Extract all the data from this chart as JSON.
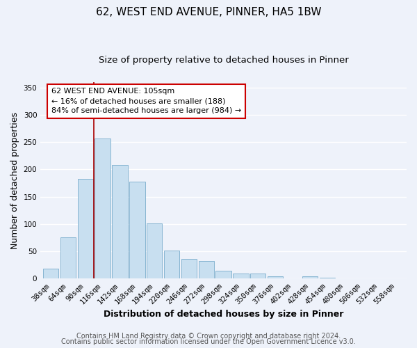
{
  "title": "62, WEST END AVENUE, PINNER, HA5 1BW",
  "subtitle": "Size of property relative to detached houses in Pinner",
  "xlabel": "Distribution of detached houses by size in Pinner",
  "ylabel": "Number of detached properties",
  "bar_labels": [
    "38sqm",
    "64sqm",
    "90sqm",
    "116sqm",
    "142sqm",
    "168sqm",
    "194sqm",
    "220sqm",
    "246sqm",
    "272sqm",
    "298sqm",
    "324sqm",
    "350sqm",
    "376sqm",
    "402sqm",
    "428sqm",
    "454sqm",
    "480sqm",
    "506sqm",
    "532sqm",
    "558sqm"
  ],
  "bar_values": [
    18,
    76,
    183,
    257,
    208,
    178,
    101,
    51,
    36,
    32,
    15,
    10,
    10,
    5,
    1,
    4,
    2,
    1,
    0,
    0,
    1
  ],
  "bar_color": "#c8dff0",
  "bar_edge_color": "#7aadcc",
  "marker_line_color": "#aa0000",
  "annotation_text": "62 WEST END AVENUE: 105sqm\n← 16% of detached houses are smaller (188)\n84% of semi-detached houses are larger (984) →",
  "annotation_box_color": "#ffffff",
  "annotation_border_color": "#cc0000",
  "ylim": [
    0,
    360
  ],
  "yticks": [
    0,
    50,
    100,
    150,
    200,
    250,
    300,
    350
  ],
  "footer_line1": "Contains HM Land Registry data © Crown copyright and database right 2024.",
  "footer_line2": "Contains public sector information licensed under the Open Government Licence v3.0.",
  "background_color": "#eef2fa",
  "grid_color": "#ffffff",
  "title_fontsize": 11,
  "subtitle_fontsize": 9.5,
  "axis_label_fontsize": 9,
  "tick_fontsize": 7.5,
  "annotation_fontsize": 8,
  "footer_fontsize": 7
}
